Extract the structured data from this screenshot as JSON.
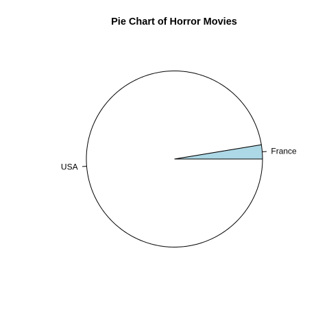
{
  "chart_data": {
    "type": "pie",
    "title": "Pie Chart of Horror Movies",
    "slices": [
      {
        "label": "France",
        "value": 0.026,
        "color": "#add8e6"
      },
      {
        "label": "USA",
        "value": 0.974,
        "color": "#ffffff"
      }
    ],
    "start_angle_deg": 0,
    "direction": "counterclockwise",
    "border_color": "#000000",
    "background": "#ffffff"
  }
}
